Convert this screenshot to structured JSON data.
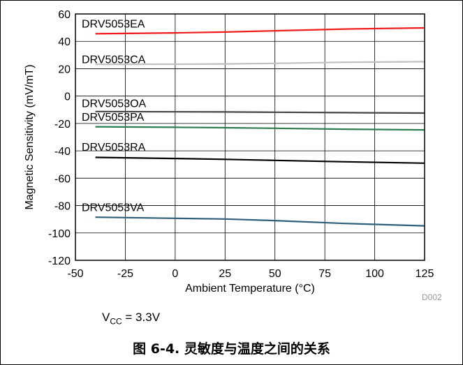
{
  "chart_data": {
    "type": "line",
    "xlabel": "Ambient Temperature (°C)",
    "ylabel": "Magnetic Sensitivity (mV/mT)",
    "xlim": [
      -50,
      125
    ],
    "ylim": [
      -120,
      60
    ],
    "xticks": [
      -50,
      -25,
      0,
      25,
      50,
      75,
      100,
      125
    ],
    "yticks": [
      -120,
      -100,
      -80,
      -60,
      -40,
      -20,
      0,
      20,
      40,
      60
    ],
    "grid": true,
    "watermark": "D002",
    "series": [
      {
        "name": "DRV5053EA",
        "color": "#ee1c1c",
        "label_y": 53,
        "points": [
          [
            -40,
            45.5
          ],
          [
            0,
            46.2
          ],
          [
            25,
            46.8
          ],
          [
            50,
            47.7
          ],
          [
            85,
            49.0
          ],
          [
            125,
            49.8
          ]
        ]
      },
      {
        "name": "DRV5053CA",
        "color": "#c0c0c0",
        "label_y": 27,
        "points": [
          [
            -40,
            23.2
          ],
          [
            0,
            23.3
          ],
          [
            25,
            23.5
          ],
          [
            50,
            23.9
          ],
          [
            85,
            24.7
          ],
          [
            125,
            25.1
          ]
        ]
      },
      {
        "name": "DRV5053OA",
        "color": "#444444",
        "label_y": -5,
        "points": [
          [
            -40,
            -11.3
          ],
          [
            0,
            -11.5
          ],
          [
            25,
            -11.6
          ],
          [
            50,
            -11.8
          ],
          [
            85,
            -12.1
          ],
          [
            125,
            -12.4
          ]
        ]
      },
      {
        "name": "DRV5053PA",
        "color": "#2e7d4f",
        "label_y": -15,
        "points": [
          [
            -40,
            -22.4
          ],
          [
            0,
            -22.8
          ],
          [
            25,
            -23.1
          ],
          [
            50,
            -23.5
          ],
          [
            85,
            -24.2
          ],
          [
            125,
            -24.7
          ]
        ]
      },
      {
        "name": "DRV5053RA",
        "color": "#000000",
        "label_y": -37,
        "points": [
          [
            -40,
            -44.8
          ],
          [
            0,
            -45.6
          ],
          [
            25,
            -46.2
          ],
          [
            50,
            -47.0
          ],
          [
            85,
            -48.0
          ],
          [
            125,
            -49.0
          ]
        ]
      },
      {
        "name": "DRV5053VA",
        "color": "#2f5f7a",
        "label_y": -81,
        "points": [
          [
            -40,
            -88.5
          ],
          [
            0,
            -89.3
          ],
          [
            25,
            -89.8
          ],
          [
            50,
            -91.0
          ],
          [
            85,
            -93.1
          ],
          [
            125,
            -94.8
          ]
        ]
      }
    ]
  },
  "note": {
    "v": "V",
    "sub": "CC",
    "rest": " = 3.3V"
  },
  "caption": "图 6-4. 灵敏度与温度之间的关系"
}
